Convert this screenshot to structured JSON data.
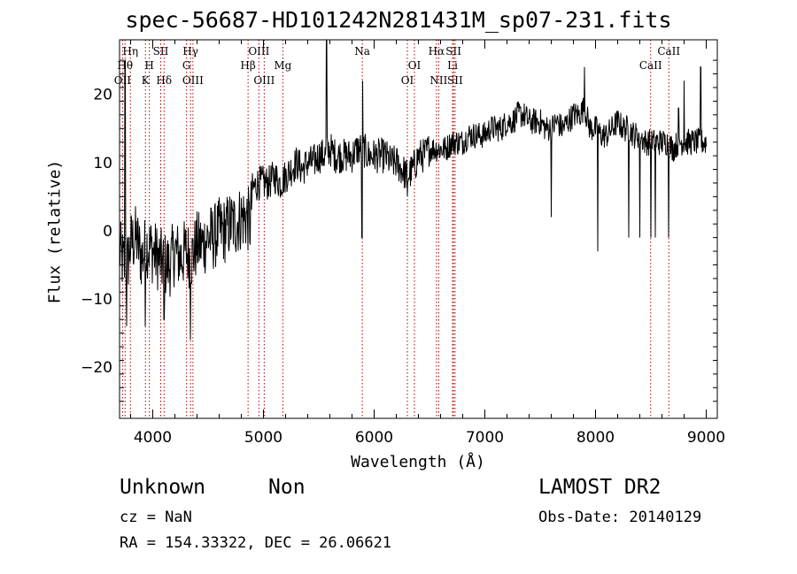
{
  "chart_data": {
    "type": "line",
    "title": "spec-56687-HD101242N281431M_sp07-231.fits",
    "xlabel": "Wavelength (Å)",
    "ylabel": "Flux (relative)",
    "xlim": [
      3700,
      9100
    ],
    "ylim": [
      -27.5,
      28
    ],
    "xticks": [
      4000,
      5000,
      6000,
      7000,
      8000,
      9000
    ],
    "xtick_labels": [
      "4000",
      "5000",
      "6000",
      "7000",
      "8000",
      "9000"
    ],
    "yticks": [
      -20,
      -10,
      0,
      10,
      20
    ],
    "ytick_labels": [
      "−20",
      "−10",
      "0",
      "10",
      "20"
    ],
    "grid": false,
    "series": [
      {
        "x": [
          3700,
          3760,
          3800,
          3850,
          3900,
          3950,
          4000,
          4050,
          4100,
          4150,
          4200,
          4250,
          4300,
          4350,
          4400,
          4450,
          4500,
          4550,
          4600,
          4650,
          4700,
          4750,
          4800,
          4850,
          4880,
          4900,
          4950,
          5000,
          5050,
          5100,
          5150,
          5200,
          5250,
          5300,
          5350,
          5400,
          5450,
          5500,
          5550,
          5600,
          5650,
          5700,
          5750,
          5800,
          5850,
          5900,
          5950,
          6000,
          6050,
          6100,
          6150,
          6200,
          6250,
          6300,
          6350,
          6400,
          6450,
          6500,
          6550,
          6600,
          6650,
          6700,
          6750,
          6800,
          6850,
          6900,
          6950,
          7000,
          7050,
          7100,
          7150,
          7200,
          7250,
          7300,
          7350,
          7400,
          7450,
          7500,
          7550,
          7600,
          7650,
          7700,
          7750,
          7800,
          7850,
          7900,
          7950,
          8000,
          8050,
          8100,
          8150,
          8200,
          8250,
          8300,
          8350,
          8400,
          8450,
          8500,
          8550,
          8600,
          8650,
          8700,
          8750,
          8800,
          8850,
          8900,
          8950,
          9000
        ],
        "y": [
          -3,
          -6,
          -2,
          -1,
          -4,
          -2,
          -3,
          -4,
          -5,
          -5,
          -3,
          -4,
          -3,
          -4,
          -2,
          -2,
          -1,
          -1,
          0,
          0,
          1,
          1,
          2,
          2,
          1,
          6,
          7,
          7,
          7,
          8,
          7,
          8,
          9,
          10,
          9,
          10,
          10,
          11,
          11,
          12,
          11,
          11,
          11,
          11,
          12,
          12,
          11,
          11,
          11,
          11,
          10,
          10,
          9,
          8,
          9,
          11,
          11,
          12,
          12,
          12,
          12,
          13,
          13,
          13,
          14,
          14,
          14,
          14,
          15,
          15,
          15,
          16,
          16,
          17,
          17,
          16,
          16,
          16,
          15,
          15,
          16,
          15,
          16,
          17,
          17,
          18,
          15,
          15,
          14,
          14,
          15,
          16,
          15,
          15,
          14,
          14,
          13,
          13,
          13,
          13,
          13,
          12,
          13,
          13,
          13,
          13,
          13,
          13
        ],
        "features": [
          {
            "x": 3750,
            "y": 25
          },
          {
            "x": 3765,
            "y": -14
          },
          {
            "x": 3933,
            "y": -14
          },
          {
            "x": 4102,
            "y": -13
          },
          {
            "x": 4340,
            "y": -16
          },
          {
            "x": 5570,
            "y": 28
          },
          {
            "x": 5890,
            "y": -1
          },
          {
            "x": 5895,
            "y": 22
          },
          {
            "x": 6300,
            "y": 5
          },
          {
            "x": 7600,
            "y": 2
          },
          {
            "x": 7900,
            "y": 24
          },
          {
            "x": 8020,
            "y": -3
          },
          {
            "x": 8300,
            "y": -1
          },
          {
            "x": 8400,
            "y": -1
          },
          {
            "x": 8500,
            "y": -1
          },
          {
            "x": 8540,
            "y": -1
          },
          {
            "x": 8660,
            "y": -1
          },
          {
            "x": 8750,
            "y": 18
          },
          {
            "x": 8800,
            "y": 22
          },
          {
            "x": 8950,
            "y": 24
          }
        ]
      }
    ],
    "annotations": [
      {
        "x": 3727,
        "label": "OII",
        "row": 3
      },
      {
        "x": 3750,
        "label": "Hθ",
        "row": 2
      },
      {
        "x": 3798,
        "label": "Hη",
        "row": 1
      },
      {
        "x": 3934,
        "label": "K",
        "row": 3
      },
      {
        "x": 3969,
        "label": "H",
        "row": 2
      },
      {
        "x": 4072,
        "label": "SII",
        "row": 1
      },
      {
        "x": 4102,
        "label": "Hδ",
        "row": 3
      },
      {
        "x": 4305,
        "label": "G",
        "row": 2
      },
      {
        "x": 4341,
        "label": "Hγ",
        "row": 1
      },
      {
        "x": 4363,
        "label": "OIII",
        "row": 3
      },
      {
        "x": 4861,
        "label": "Hβ",
        "row": 2
      },
      {
        "x": 4959,
        "label": "OIII",
        "row": 1
      },
      {
        "x": 5007,
        "label": "OIII",
        "row": 3
      },
      {
        "x": 5175,
        "label": "Mg",
        "row": 2
      },
      {
        "x": 5893,
        "label": "Na",
        "row": 1
      },
      {
        "x": 6300,
        "label": "OI",
        "row": 3
      },
      {
        "x": 6364,
        "label": "OI",
        "row": 2
      },
      {
        "x": 6563,
        "label": "Hα",
        "row": 1
      },
      {
        "x": 6583,
        "label": "NII",
        "row": 3
      },
      {
        "x": 6708,
        "label": "Li",
        "row": 2
      },
      {
        "x": 6717,
        "label": "SII",
        "row": 1
      },
      {
        "x": 6731,
        "label": "SII",
        "row": 3
      },
      {
        "x": 8498,
        "label": "CaII",
        "row": 2
      },
      {
        "x": 8662,
        "label": "CaII",
        "row": 1
      }
    ]
  },
  "info": {
    "class": "Unknown",
    "subclass": "Non",
    "cz": "cz = NaN",
    "radec": "RA = 154.33322, DEC =  26.06621",
    "survey": "LAMOST DR2",
    "obsdate": "Obs-Date: 20140129"
  }
}
